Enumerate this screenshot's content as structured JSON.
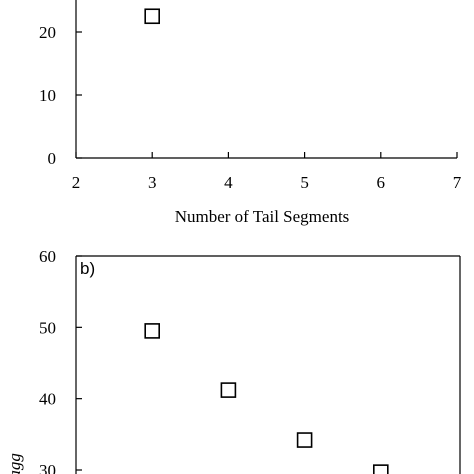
{
  "chart_data": [
    {
      "type": "scatter",
      "panel_label": "",
      "xlabel": "Number of Tail Segments",
      "ylabel": "",
      "xlim": [
        2,
        7
      ],
      "ylim": [
        0,
        30
      ],
      "x_ticks": [
        "2",
        "3",
        "4",
        "5",
        "6",
        "7"
      ],
      "y_ticks": [
        "0",
        "10",
        "20"
      ],
      "series": [
        {
          "x": [
            3
          ],
          "y": [
            22.5
          ]
        }
      ]
    },
    {
      "type": "scatter",
      "panel_label": "b)",
      "xlabel": "",
      "ylabel": "Nagg",
      "xlim": [
        2,
        7
      ],
      "ylim": [
        30,
        60
      ],
      "x_ticks": [],
      "y_ticks": [
        "30",
        "40",
        "50",
        "60"
      ],
      "series": [
        {
          "x": [
            3,
            4,
            5,
            6
          ],
          "y": [
            49.5,
            41.2,
            34.2,
            29.7
          ]
        }
      ]
    }
  ]
}
